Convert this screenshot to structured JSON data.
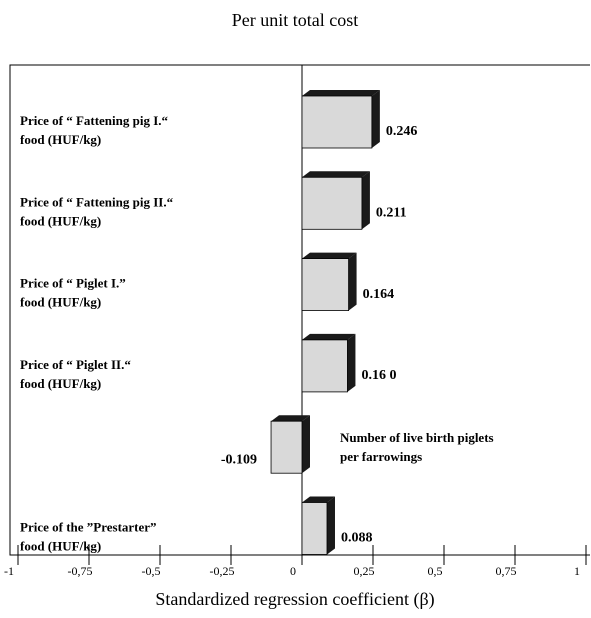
{
  "chart_data": {
    "type": "bar",
    "orientation": "horizontal",
    "title": "Per unit total cost",
    "x_label": "Standardized regression coefficient (β)",
    "categories": [
      [
        "Price of “ Fattening pig  I.“",
        "food (HUF/kg)"
      ],
      [
        "Price of “ Fattening pig  II.“",
        "food (HUF/kg)"
      ],
      [
        "Price of “ Piglet  I.”",
        "food (HUF/kg)"
      ],
      [
        "Price of “ Piglet  II.“",
        "food (HUF/kg)"
      ],
      [
        "Number of live birth piglets",
        "per farrowings"
      ],
      [
        "Price of the ”Prestarter”",
        "food (HUF/kg)"
      ]
    ],
    "values": [
      0.246,
      0.211,
      0.164,
      0.16,
      -0.109,
      0.088
    ],
    "value_labels": [
      "0.246",
      "0.211",
      "0.164",
      "0.16 0",
      "-0.109",
      "0.088"
    ],
    "color": "#d9d9d9",
    "depth_color": "#1a1a1a",
    "xlim": [
      -1,
      1
    ],
    "xticks": [
      -1,
      {
        "value": -0.75,
        "label": "-0,75"
      },
      {
        "value": -0.5,
        "label": "-0,5"
      },
      {
        "value": -0.25,
        "label": "-0,25"
      },
      0,
      {
        "value": 0.25,
        "label": "0,25"
      },
      {
        "value": 0.5,
        "label": "0,5"
      },
      {
        "value": 0.75,
        "label": "0,75"
      },
      1
    ]
  }
}
